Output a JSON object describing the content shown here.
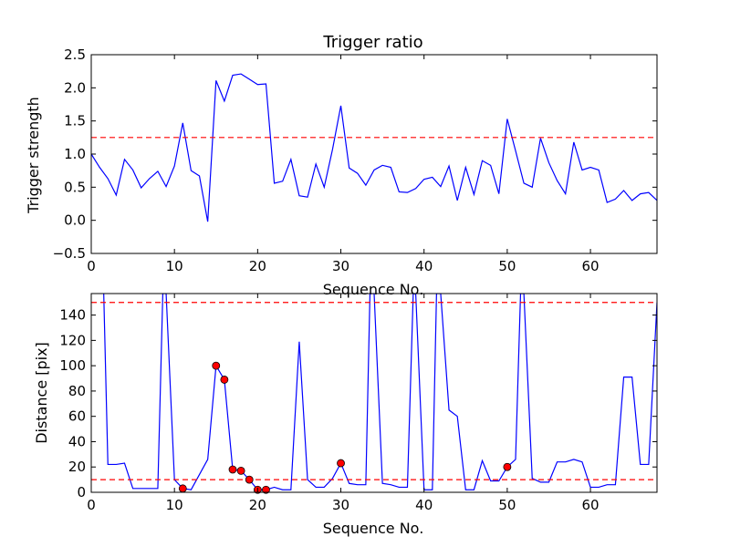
{
  "chart_data": [
    {
      "type": "line",
      "title": "Trigger ratio",
      "xlabel": "Sequence No.",
      "ylabel": "Trigger strength",
      "xlim": [
        0,
        68
      ],
      "ylim": [
        -0.5,
        2.5
      ],
      "xticks": [
        "0",
        "10",
        "20",
        "30",
        "40",
        "50",
        "60"
      ],
      "xtick_values": [
        0,
        10,
        20,
        30,
        40,
        50,
        60
      ],
      "yticks": [
        "−0.5",
        "0.0",
        "0.5",
        "1.0",
        "1.5",
        "2.0",
        "2.5"
      ],
      "ytick_values": [
        -0.5,
        0.0,
        0.5,
        1.0,
        1.5,
        2.0,
        2.5
      ],
      "series": [
        {
          "color": "#0000ff",
          "x": [
            0,
            1,
            2,
            3,
            4,
            5,
            6,
            7,
            8,
            9,
            10,
            11,
            12,
            13,
            14,
            15,
            16,
            17,
            18,
            19,
            20,
            21,
            22,
            23,
            24,
            25,
            26,
            27,
            28,
            29,
            30,
            31,
            32,
            33,
            34,
            35,
            36,
            37,
            38,
            39,
            40,
            41,
            42,
            43,
            44,
            45,
            46,
            47,
            48,
            49,
            50,
            51,
            52,
            53,
            54,
            55,
            56,
            57,
            58,
            59,
            60,
            61,
            62,
            63,
            64,
            65,
            66,
            67,
            68
          ],
          "y": [
            1.0,
            0.8,
            0.63,
            0.38,
            0.92,
            0.76,
            0.49,
            0.63,
            0.74,
            0.51,
            0.82,
            1.47,
            0.75,
            0.67,
            -0.02,
            2.11,
            1.8,
            2.19,
            2.21,
            2.13,
            2.05,
            2.06,
            0.56,
            0.59,
            0.92,
            0.37,
            0.35,
            0.85,
            0.5,
            1.07,
            1.73,
            0.79,
            0.71,
            0.53,
            0.76,
            0.83,
            0.8,
            0.43,
            0.42,
            0.48,
            0.62,
            0.65,
            0.51,
            0.82,
            0.3,
            0.8,
            0.39,
            0.9,
            0.83,
            0.4,
            1.53,
            1.05,
            0.56,
            0.5,
            1.24,
            0.87,
            0.6,
            0.4,
            1.18,
            0.76,
            0.8,
            0.76,
            0.27,
            0.32,
            0.45,
            0.3,
            0.4,
            0.42,
            0.3
          ]
        }
      ],
      "threshold": {
        "y": 1.25,
        "color": "#ff0000",
        "style": "dashed"
      }
    },
    {
      "type": "line",
      "xlabel": "Sequence No.",
      "ylabel": "Distance [pix]",
      "xlim": [
        0,
        68
      ],
      "ylim": [
        0,
        157
      ],
      "xticks": [
        "0",
        "10",
        "20",
        "30",
        "40",
        "50",
        "60"
      ],
      "xtick_values": [
        0,
        10,
        20,
        30,
        40,
        50,
        60
      ],
      "yticks": [
        "0",
        "20",
        "40",
        "60",
        "80",
        "100",
        "120",
        "140"
      ],
      "ytick_values": [
        0,
        20,
        40,
        60,
        80,
        100,
        120,
        140
      ],
      "series": [
        {
          "color": "#0000ff",
          "x": [
            0,
            1,
            1.5,
            2,
            3,
            4,
            5,
            6,
            7,
            8,
            8.6,
            9,
            10,
            11,
            12,
            13,
            14,
            15,
            16,
            17,
            18,
            19,
            20,
            21,
            22,
            23,
            24,
            25,
            26,
            27,
            28,
            29,
            30,
            31,
            32,
            33,
            33.5,
            34,
            35,
            36,
            37,
            38,
            38.7,
            39,
            40,
            41,
            41.5,
            42,
            43,
            44,
            45,
            46,
            47,
            48,
            49,
            50,
            51,
            51.6,
            52,
            53,
            54,
            55,
            56,
            57,
            58,
            59,
            60,
            61,
            62,
            63,
            64,
            65,
            66,
            67,
            68
          ],
          "y": [
            null,
            null,
            157,
            22,
            22,
            23,
            3,
            3,
            3,
            3,
            157,
            157,
            10,
            3,
            2,
            14,
            26,
            100,
            89,
            18,
            17,
            10,
            2,
            2,
            4,
            2,
            2,
            119,
            10,
            4,
            4,
            11,
            23,
            7,
            6,
            6,
            157,
            157,
            7,
            6,
            4,
            4,
            157,
            157,
            2,
            2,
            157,
            157,
            65,
            60,
            2,
            2,
            25,
            9,
            9,
            20,
            26,
            157,
            157,
            11,
            8,
            8,
            24,
            24,
            26,
            24,
            4,
            4,
            6,
            6,
            91,
            91,
            22,
            22,
            150
          ]
        }
      ],
      "markers": {
        "color": "#ff0000",
        "x": [
          11,
          15,
          16,
          17,
          18,
          19,
          20,
          21,
          30,
          50
        ],
        "y": [
          3,
          100,
          89,
          18,
          17,
          10,
          2,
          2,
          23,
          20
        ]
      },
      "thresholds": [
        {
          "y": 150,
          "color": "#ff0000",
          "style": "dashed"
        },
        {
          "y": 10,
          "color": "#ff0000",
          "style": "dashed"
        }
      ]
    }
  ]
}
